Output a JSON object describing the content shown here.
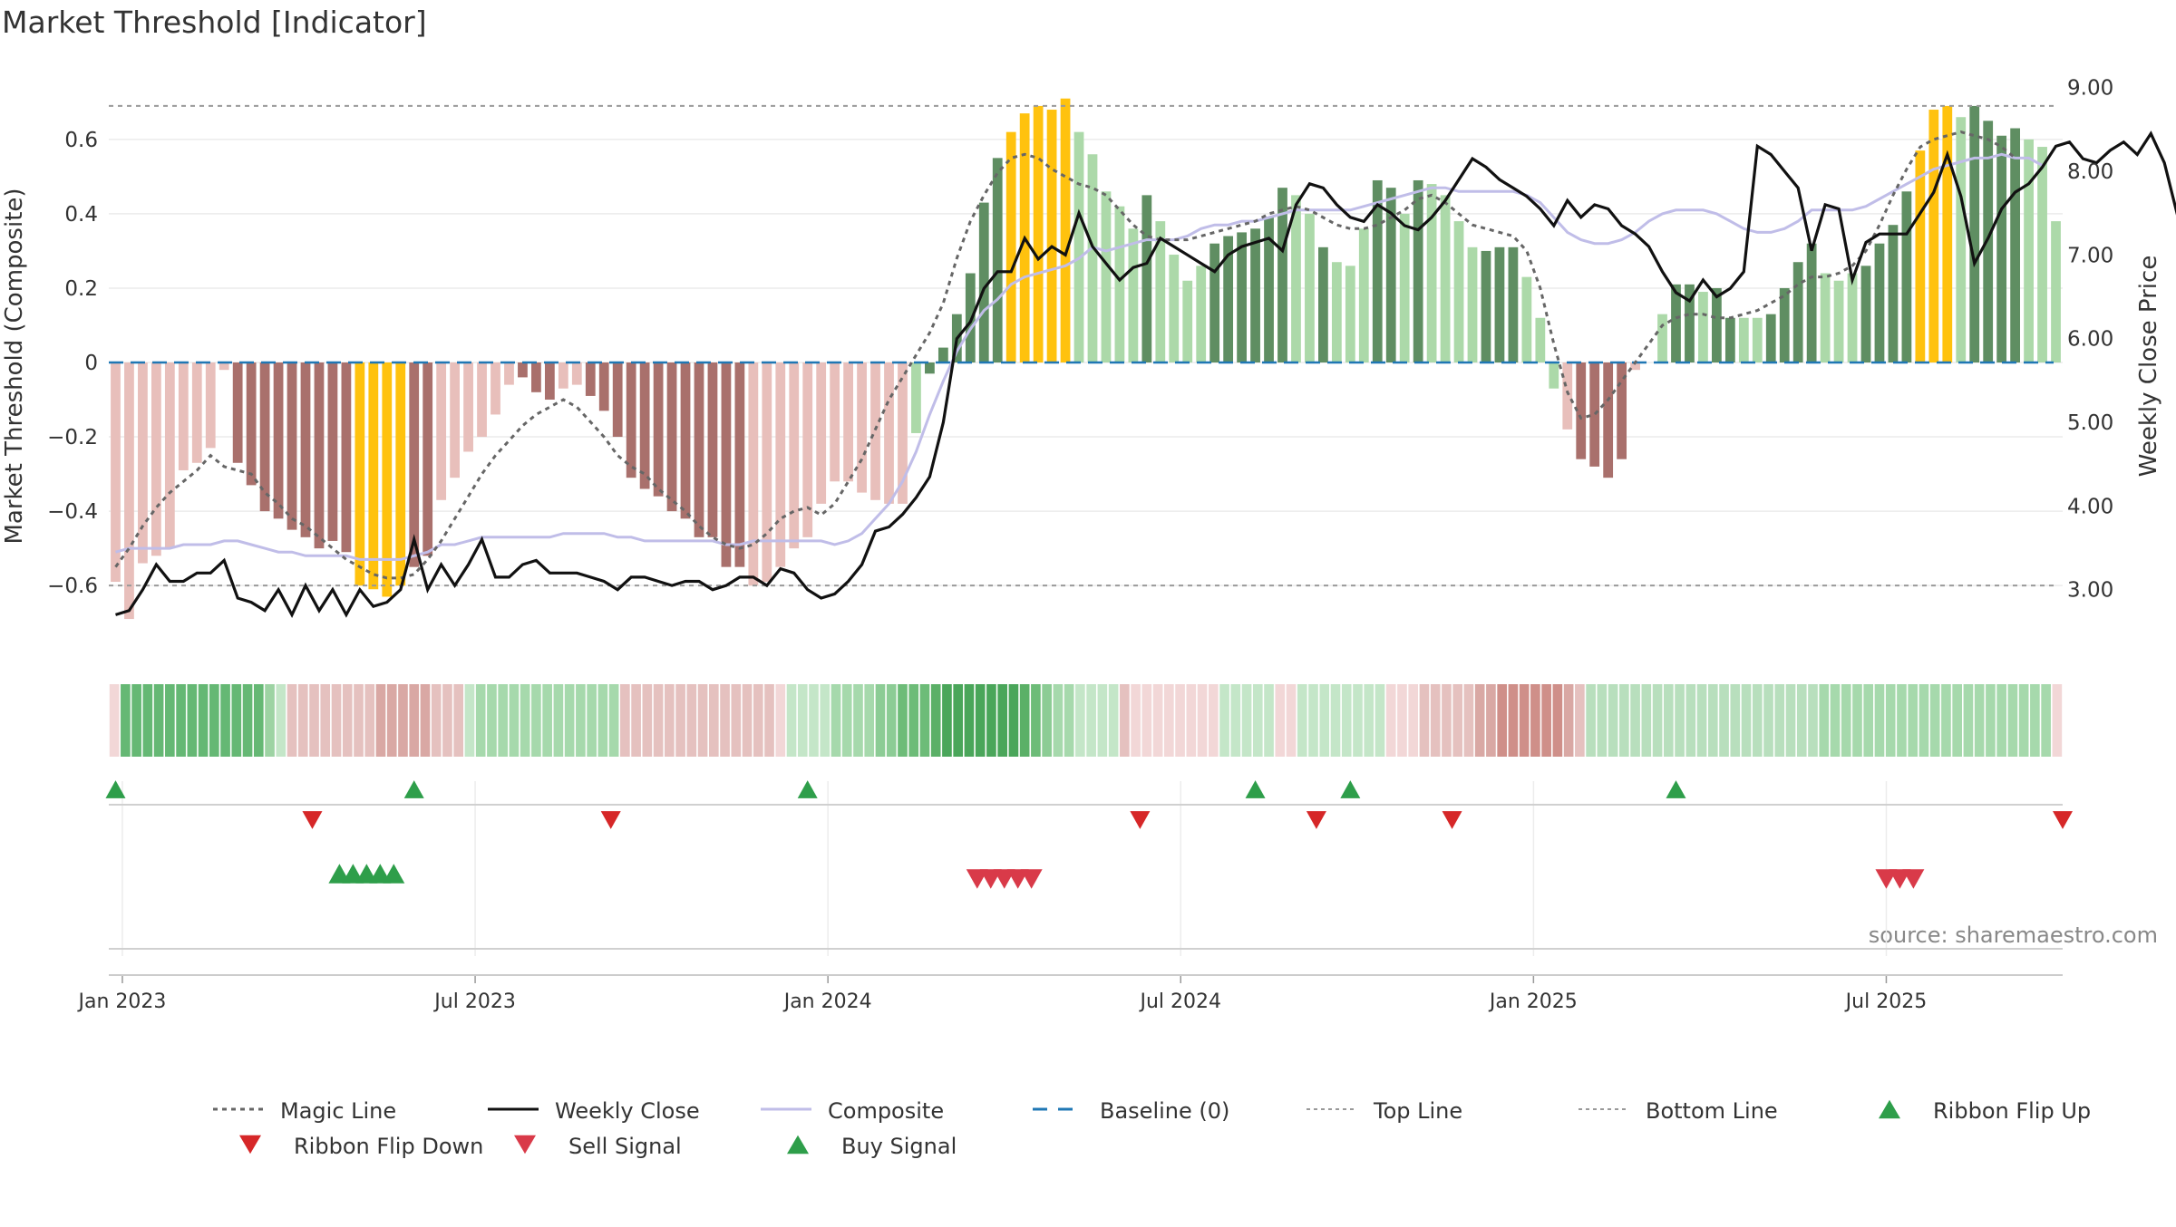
{
  "chart_data": {
    "type": "bar",
    "title": "Market Threshold [Indicator]",
    "ylabel_left": "Market Threshold (Composite)",
    "ylabel_right": "Weekly Close Price",
    "source": "source: sharemaestro.com",
    "y_left_range": [
      -0.78,
      0.78
    ],
    "y_left_ticks": [
      {
        "v": 0.6,
        "label": "0.6"
      },
      {
        "v": 0.4,
        "label": "0.4"
      },
      {
        "v": 0.2,
        "label": "0.2"
      },
      {
        "v": 0,
        "label": "0"
      },
      {
        "v": -0.2,
        "label": "−0.2"
      },
      {
        "v": -0.4,
        "label": "−0.4"
      },
      {
        "v": -0.6,
        "label": "−0.6"
      }
    ],
    "y_right_range": [
      2.25,
      9.18
    ],
    "y_right_ticks": [
      {
        "v": 9,
        "label": "9.00"
      },
      {
        "v": 8,
        "label": "8.00"
      },
      {
        "v": 7,
        "label": "7.00"
      },
      {
        "v": 6,
        "label": "6.00"
      },
      {
        "v": 5,
        "label": "5.00"
      },
      {
        "v": 4,
        "label": "4.00"
      },
      {
        "v": 3,
        "label": "3.00"
      }
    ],
    "x_ticks": [
      {
        "label": "Jan 2023",
        "week": 1
      },
      {
        "label": "Jul 2023",
        "week": 27
      },
      {
        "label": "Jan 2024",
        "week": 53
      },
      {
        "label": "Jul 2024",
        "week": 79
      },
      {
        "label": "Jan 2025",
        "week": 105
      },
      {
        "label": "Jul 2025",
        "week": 131
      }
    ],
    "weeks_total": 144,
    "top_line": 0.69,
    "bottom_line": -0.6,
    "composite": [
      -0.59,
      -0.69,
      -0.54,
      -0.52,
      -0.5,
      -0.29,
      -0.27,
      -0.23,
      -0.02,
      -0.27,
      -0.33,
      -0.4,
      -0.42,
      -0.45,
      -0.47,
      -0.5,
      -0.48,
      -0.51,
      -0.6,
      -0.61,
      -0.63,
      -0.6,
      -0.55,
      -0.52,
      -0.37,
      -0.31,
      -0.24,
      -0.2,
      -0.14,
      -0.06,
      -0.04,
      -0.08,
      -0.1,
      -0.07,
      -0.06,
      -0.09,
      -0.13,
      -0.2,
      -0.31,
      -0.34,
      -0.36,
      -0.4,
      -0.42,
      -0.47,
      -0.47,
      -0.55,
      -0.55,
      -0.6,
      -0.59,
      -0.55,
      -0.5,
      -0.47,
      -0.38,
      -0.32,
      -0.32,
      -0.35,
      -0.37,
      -0.38,
      -0.38,
      -0.19,
      -0.03,
      0.04,
      0.13,
      0.24,
      0.43,
      0.55,
      0.62,
      0.67,
      0.69,
      0.68,
      0.71,
      0.62,
      0.56,
      0.46,
      0.42,
      0.36,
      0.45,
      0.38,
      0.29,
      0.22,
      0.26,
      0.32,
      0.34,
      0.35,
      0.36,
      0.39,
      0.47,
      0.45,
      0.4,
      0.31,
      0.27,
      0.26,
      0.36,
      0.49,
      0.47,
      0.4,
      0.49,
      0.48,
      0.45,
      0.38,
      0.31,
      0.3,
      0.31,
      0.31,
      0.23,
      0.12,
      -0.07,
      -0.18,
      -0.26,
      -0.28,
      -0.31,
      -0.26,
      -0.02,
      0.0,
      0.13,
      0.21,
      0.21,
      0.19,
      0.2,
      0.12,
      0.12,
      0.12,
      0.13,
      0.2,
      0.27,
      0.32,
      0.24,
      0.22,
      0.24,
      0.26,
      0.32,
      0.37,
      0.46,
      0.57,
      0.68,
      0.69,
      0.66,
      0.69,
      0.65,
      0.61,
      0.63,
      0.6,
      0.58,
      0.38
    ],
    "bar_colors": [
      "pl",
      "pl",
      "pl",
      "pl",
      "pl",
      "pl",
      "pl",
      "pl",
      "pl",
      "pd",
      "pd",
      "pd",
      "pd",
      "pd",
      "pd",
      "pd",
      "pd",
      "pd",
      "y",
      "y",
      "y",
      "y",
      "pd",
      "pd",
      "pl",
      "pl",
      "pl",
      "pl",
      "pl",
      "pl",
      "pd",
      "pd",
      "pd",
      "pl",
      "pl",
      "pd",
      "pd",
      "pd",
      "pd",
      "pd",
      "pd",
      "pd",
      "pd",
      "pd",
      "pd",
      "pd",
      "pd",
      "pl",
      "pl",
      "pl",
      "pl",
      "pl",
      "pl",
      "pl",
      "pl",
      "pl",
      "pl",
      "pl",
      "pl",
      "gl",
      "gd",
      "gd",
      "gd",
      "gd",
      "gd",
      "gd",
      "y",
      "y",
      "y",
      "y",
      "y",
      "gl",
      "gl",
      "gl",
      "gl",
      "gl",
      "gd",
      "gl",
      "gl",
      "gl",
      "gl",
      "gd",
      "gd",
      "gd",
      "gd",
      "gd",
      "gd",
      "gl",
      "gl",
      "gd",
      "gl",
      "gl",
      "gl",
      "gd",
      "gd",
      "gl",
      "gd",
      "gl",
      "gl",
      "gl",
      "gl",
      "gd",
      "gd",
      "gd",
      "gl",
      "gl",
      "gl",
      "pl",
      "pd",
      "pd",
      "pd",
      "pd",
      "pl",
      "pl",
      "gl",
      "gd",
      "gd",
      "gl",
      "gd",
      "gd",
      "gl",
      "gl",
      "gd",
      "gd",
      "gd",
      "gd",
      "gl",
      "gl",
      "gl",
      "gd",
      "gd",
      "gd",
      "gd",
      "y",
      "y",
      "y",
      "gl",
      "gd",
      "gd",
      "gd",
      "gd",
      "gl",
      "gl"
    ],
    "magic_line": [
      -0.55,
      -0.5,
      -0.44,
      -0.39,
      -0.35,
      -0.32,
      -0.29,
      -0.25,
      -0.28,
      -0.29,
      -0.3,
      -0.35,
      -0.38,
      -0.42,
      -0.44,
      -0.47,
      -0.5,
      -0.53,
      -0.55,
      -0.57,
      -0.58,
      -0.58,
      -0.57,
      -0.53,
      -0.48,
      -0.42,
      -0.36,
      -0.3,
      -0.25,
      -0.21,
      -0.17,
      -0.14,
      -0.12,
      -0.1,
      -0.12,
      -0.16,
      -0.2,
      -0.25,
      -0.28,
      -0.3,
      -0.34,
      -0.37,
      -0.4,
      -0.44,
      -0.47,
      -0.49,
      -0.5,
      -0.49,
      -0.46,
      -0.42,
      -0.4,
      -0.39,
      -0.41,
      -0.38,
      -0.32,
      -0.26,
      -0.18,
      -0.1,
      -0.04,
      0.02,
      0.08,
      0.16,
      0.28,
      0.38,
      0.45,
      0.51,
      0.55,
      0.56,
      0.55,
      0.52,
      0.5,
      0.48,
      0.47,
      0.45,
      0.41,
      0.37,
      0.34,
      0.33,
      0.33,
      0.33,
      0.34,
      0.35,
      0.36,
      0.37,
      0.38,
      0.4,
      0.41,
      0.42,
      0.41,
      0.39,
      0.37,
      0.36,
      0.36,
      0.37,
      0.39,
      0.41,
      0.44,
      0.45,
      0.43,
      0.4,
      0.37,
      0.36,
      0.35,
      0.34,
      0.3,
      0.2,
      0.05,
      -0.08,
      -0.15,
      -0.14,
      -0.1,
      -0.05,
      0.0,
      0.05,
      0.1,
      0.12,
      0.13,
      0.13,
      0.12,
      0.12,
      0.13,
      0.14,
      0.16,
      0.18,
      0.21,
      0.23,
      0.23,
      0.24,
      0.26,
      0.3,
      0.37,
      0.45,
      0.52,
      0.58,
      0.6,
      0.61,
      0.62,
      0.61,
      0.6,
      0.58,
      0.55
    ],
    "composite_line": [
      -0.51,
      -0.5,
      -0.5,
      -0.5,
      -0.5,
      -0.49,
      -0.49,
      -0.49,
      -0.48,
      -0.48,
      -0.49,
      -0.5,
      -0.51,
      -0.51,
      -0.52,
      -0.52,
      -0.52,
      -0.52,
      -0.53,
      -0.53,
      -0.53,
      -0.53,
      -0.52,
      -0.51,
      -0.49,
      -0.49,
      -0.48,
      -0.47,
      -0.47,
      -0.47,
      -0.47,
      -0.47,
      -0.47,
      -0.46,
      -0.46,
      -0.46,
      -0.46,
      -0.47,
      -0.47,
      -0.48,
      -0.48,
      -0.48,
      -0.48,
      -0.48,
      -0.48,
      -0.49,
      -0.49,
      -0.48,
      -0.48,
      -0.48,
      -0.48,
      -0.48,
      -0.48,
      -0.49,
      -0.48,
      -0.46,
      -0.42,
      -0.38,
      -0.32,
      -0.24,
      -0.14,
      -0.05,
      0.03,
      0.09,
      0.14,
      0.17,
      0.21,
      0.23,
      0.24,
      0.25,
      0.26,
      0.28,
      0.31,
      0.3,
      0.31,
      0.32,
      0.33,
      0.33,
      0.33,
      0.34,
      0.36,
      0.37,
      0.37,
      0.38,
      0.38,
      0.39,
      0.4,
      0.41,
      0.41,
      0.41,
      0.41,
      0.41,
      0.42,
      0.43,
      0.44,
      0.45,
      0.46,
      0.47,
      0.47,
      0.46,
      0.46,
      0.46,
      0.46,
      0.46,
      0.45,
      0.43,
      0.39,
      0.35,
      0.33,
      0.32,
      0.32,
      0.33,
      0.35,
      0.38,
      0.4,
      0.41,
      0.41,
      0.41,
      0.4,
      0.38,
      0.36,
      0.35,
      0.35,
      0.36,
      0.38,
      0.41,
      0.41,
      0.41,
      0.41,
      0.42,
      0.44,
      0.46,
      0.48,
      0.5,
      0.52,
      0.53,
      0.54,
      0.55,
      0.55,
      0.56,
      0.55,
      0.55,
      0.53
    ],
    "weekly_close": [
      2.7,
      2.75,
      3.0,
      3.3,
      3.1,
      3.1,
      3.2,
      3.2,
      3.35,
      2.9,
      2.85,
      2.75,
      3.0,
      2.7,
      3.05,
      2.75,
      3.0,
      2.7,
      3.0,
      2.8,
      2.85,
      3.0,
      3.6,
      3.0,
      3.3,
      3.05,
      3.3,
      3.6,
      3.15,
      3.15,
      3.3,
      3.35,
      3.2,
      3.2,
      3.2,
      3.15,
      3.1,
      3.0,
      3.15,
      3.15,
      3.1,
      3.05,
      3.1,
      3.1,
      3.0,
      3.05,
      3.15,
      3.15,
      3.05,
      3.25,
      3.2,
      3.0,
      2.9,
      2.95,
      3.1,
      3.3,
      3.7,
      3.75,
      3.9,
      4.1,
      4.35,
      5.0,
      6.0,
      6.2,
      6.6,
      6.8,
      6.8,
      7.2,
      6.95,
      7.1,
      7.0,
      7.5,
      7.1,
      6.9,
      6.7,
      6.85,
      6.9,
      7.2,
      7.1,
      7.0,
      6.9,
      6.8,
      7.0,
      7.1,
      7.15,
      7.2,
      7.05,
      7.6,
      7.85,
      7.8,
      7.6,
      7.45,
      7.4,
      7.6,
      7.5,
      7.35,
      7.3,
      7.45,
      7.65,
      7.9,
      8.15,
      8.05,
      7.9,
      7.8,
      7.7,
      7.55,
      7.35,
      7.65,
      7.45,
      7.6,
      7.55,
      7.35,
      7.25,
      7.1,
      6.8,
      6.55,
      6.45,
      6.7,
      6.5,
      6.6,
      6.8,
      8.3,
      8.2,
      8.0,
      7.8,
      7.05,
      7.6,
      7.55,
      6.7,
      7.15,
      7.25,
      7.25,
      7.25,
      7.5,
      7.75,
      8.2,
      7.7,
      6.9,
      7.2,
      7.55,
      7.75,
      7.85,
      8.05,
      8.3,
      8.35,
      8.15,
      8.1,
      8.25,
      8.35,
      8.2,
      8.45,
      8.1,
      7.45,
      6.95
    ],
    "ribbon_colors": [
      "#f2d7d7",
      "#65b874",
      "#65b874",
      "#65b874",
      "#65b874",
      "#65b874",
      "#65b874",
      "#65b874",
      "#65b874",
      "#65b874",
      "#65b874",
      "#65b874",
      "#65b874",
      "#65b874",
      "#9dd3a3",
      "#c4e6c8",
      "#e5c1bf",
      "#e5c1bf",
      "#e5c1bf",
      "#e5c1bf",
      "#e5c1bf",
      "#e5c1bf",
      "#e5c1bf",
      "#e5c1bf",
      "#d9a8a4",
      "#d9a8a4",
      "#d9a8a4",
      "#d9a8a4",
      "#d9a8a4",
      "#e5c1bf",
      "#e5c1bf",
      "#e5c1bf",
      "#c4e6c8",
      "#a6d9ac",
      "#a6d9ac",
      "#a6d9ac",
      "#a6d9ac",
      "#a6d9ac",
      "#a6d9ac",
      "#a6d9ac",
      "#a6d9ac",
      "#a6d9ac",
      "#a6d9ac",
      "#a6d9ac",
      "#a6d9ac",
      "#a6d9ac",
      "#e5c1bf",
      "#e5c1bf",
      "#e5c1bf",
      "#e5c1bf",
      "#e5c1bf",
      "#e5c1bf",
      "#e5c1bf",
      "#e5c1bf",
      "#e5c1bf",
      "#e5c1bf",
      "#e5c1bf",
      "#e5c1bf",
      "#e5c1bf",
      "#e5c1bf",
      "#f2d7d7",
      "#c4e6c8",
      "#c4e6c8",
      "#c4e6c8",
      "#c4e6c8",
      "#a6d9ac",
      "#a6d9ac",
      "#a6d9ac",
      "#a6d9ac",
      "#8ccc95",
      "#8ccc95",
      "#6dbc78",
      "#6dbc78",
      "#6dbc78",
      "#5bb067",
      "#4aa65a",
      "#4aa65a",
      "#4aa65a",
      "#4aa65a",
      "#4aa65a",
      "#4aa65a",
      "#4aa65a",
      "#5bb067",
      "#6dbc78",
      "#8ccc95",
      "#a6d9ac",
      "#a6d9ac",
      "#c4e6c8",
      "#c4e6c8",
      "#c4e6c8",
      "#c4e6c8",
      "#e5c1bf",
      "#f2d7d7",
      "#f2d7d7",
      "#f2d7d7",
      "#f2d7d7",
      "#f2d7d7",
      "#f2d7d7",
      "#f2d7d7",
      "#f2d7d7",
      "#c4e6c8",
      "#c4e6c8",
      "#c4e6c8",
      "#c4e6c8",
      "#c4e6c8",
      "#f2d7d7",
      "#f2d7d7",
      "#c4e6c8",
      "#c4e6c8",
      "#c4e6c8",
      "#c4e6c8",
      "#c4e6c8",
      "#c4e6c8",
      "#c4e6c8",
      "#c4e6c8",
      "#f2d7d7",
      "#f2d7d7",
      "#f2d7d7",
      "#e5c1bf",
      "#e5c1bf",
      "#e5c1bf",
      "#e5c1bf",
      "#e5c1bf",
      "#d9a8a4",
      "#d9a8a4",
      "#cf8f89",
      "#cf8f89",
      "#cf8f89",
      "#cf8f89",
      "#cf8f89",
      "#cf8f89",
      "#d9a8a4",
      "#e5c1bf",
      "#b8dfbd",
      "#b8dfbd",
      "#b8dfbd",
      "#b8dfbd",
      "#b8dfbd",
      "#b8dfbd",
      "#b8dfbd",
      "#b8dfbd",
      "#b8dfbd",
      "#b8dfbd",
      "#b8dfbd",
      "#b8dfbd",
      "#b8dfbd",
      "#b8dfbd",
      "#b8dfbd",
      "#b8dfbd",
      "#b8dfbd",
      "#b8dfbd",
      "#b8dfbd",
      "#b8dfbd",
      "#b8dfbd",
      "#a6d9ac",
      "#a6d9ac",
      "#a6d9ac",
      "#a6d9ac",
      "#a6d9ac",
      "#a6d9ac",
      "#a6d9ac",
      "#a6d9ac",
      "#a6d9ac",
      "#a6d9ac",
      "#a6d9ac",
      "#a6d9ac",
      "#a6d9ac",
      "#a6d9ac",
      "#a6d9ac",
      "#a6d9ac",
      "#a6d9ac",
      "#a6d9ac",
      "#a6d9ac",
      "#a6d9ac",
      "#a6d9ac",
      "#f2d7d7"
    ],
    "ribbon_flip_up_weeks": [
      0.5,
      22.5,
      51.5,
      84.5,
      91.5,
      115.5
    ],
    "ribbon_flip_down_weeks": [
      15,
      37,
      76,
      89,
      99,
      144
    ],
    "buy_signal_weeks": [
      17,
      18,
      19,
      20,
      21
    ],
    "sell_signal_weeks": [
      64,
      65,
      66,
      67,
      68,
      131,
      132,
      133
    ],
    "colors": {
      "bar_pink_light": "#e8bfbb",
      "bar_pink_dark": "#a9706c",
      "bar_yellow": "#ffc20e",
      "bar_green_light": "#acd9a9",
      "bar_green_dark": "#5f8e62",
      "magic_line": "#666666",
      "weekly_close": "#111111",
      "composite_line": "#c0bde8",
      "baseline": "#1f77b4",
      "top_bottom_line": "#999999",
      "flip_up": "#2e9e4a",
      "flip_down": "#d62728",
      "sell": "#d93a49",
      "buy": "#2e9e4a"
    },
    "legend": [
      {
        "label": "Magic Line",
        "kind": "dotted",
        "color": "#666666"
      },
      {
        "label": "Weekly Close",
        "kind": "solid",
        "color": "#111111"
      },
      {
        "label": "Composite",
        "kind": "solid-light",
        "color": "#c0bde8"
      },
      {
        "label": "Baseline (0)",
        "kind": "dashed",
        "color": "#1f77b4"
      },
      {
        "label": "Top Line",
        "kind": "dotted-light",
        "color": "#999999"
      },
      {
        "label": "Bottom Line",
        "kind": "dotted-light",
        "color": "#999999"
      },
      {
        "label": "Ribbon Flip Up",
        "kind": "tri-up",
        "color": "#2e9e4a"
      },
      {
        "label": "Ribbon Flip Down",
        "kind": "tri-down",
        "color": "#d62728"
      },
      {
        "label": "Sell Signal",
        "kind": "tri-down",
        "color": "#d93a49"
      },
      {
        "label": "Buy Signal",
        "kind": "tri-up",
        "color": "#2e9e4a"
      }
    ]
  }
}
